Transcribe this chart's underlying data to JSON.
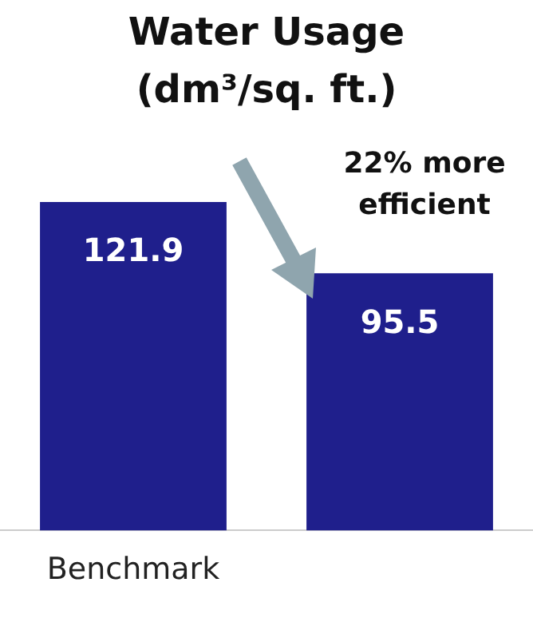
{
  "chart_data": {
    "type": "bar",
    "title": "Water Usage (dm³/sq. ft.)",
    "categories": [
      "Benchmark",
      null
    ],
    "values": [
      121.9,
      95.5
    ],
    "color": "#1f1f8c",
    "data_labels": true,
    "annotations": [
      "22% more efficient"
    ]
  }
}
